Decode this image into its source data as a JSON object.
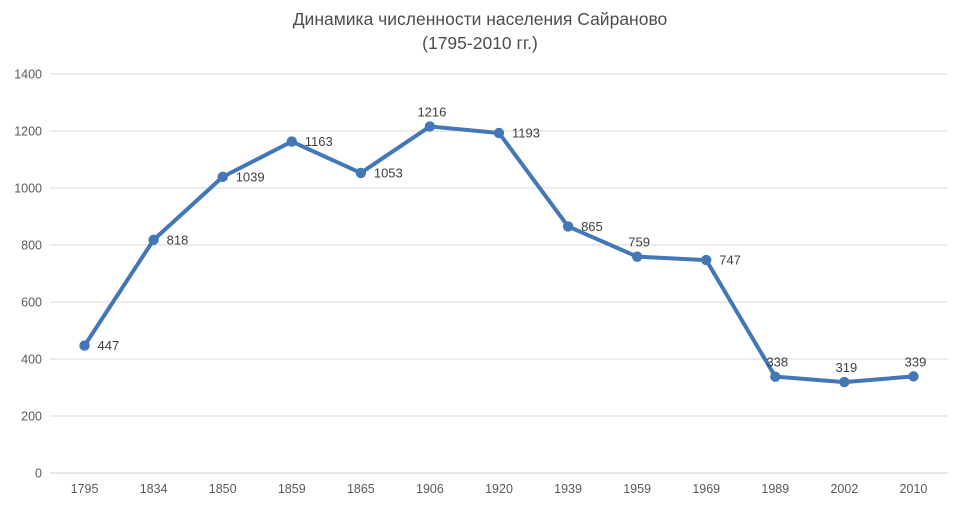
{
  "chart_data": {
    "type": "line",
    "title": "Динамика численности населения Сайраново (1795-2010 гг.)",
    "title_lines": [
      "Динамика численности населения Сайраново",
      "(1795-2010 гг.)"
    ],
    "categories": [
      "1795",
      "1834",
      "1850",
      "1859",
      "1865",
      "1906",
      "1920",
      "1939",
      "1959",
      "1969",
      "1989",
      "2002",
      "2010"
    ],
    "values": [
      447,
      818,
      1039,
      1163,
      1053,
      1216,
      1193,
      865,
      759,
      747,
      338,
      319,
      339
    ],
    "data_label_positions": [
      "right",
      "right",
      "right",
      "right",
      "right",
      "above",
      "right",
      "right",
      "above",
      "right",
      "above",
      "above",
      "above"
    ],
    "xlabel": "",
    "ylabel": "",
    "ylim": [
      0,
      1400
    ],
    "ytick_step": 200,
    "yticks": [
      0,
      200,
      400,
      600,
      800,
      1000,
      1200,
      1400
    ],
    "grid": true,
    "legend_position": "none",
    "colors": {
      "line": "#4377B6",
      "marker": "#4377B6",
      "gridline": "#D9D9D9",
      "axis_line": "#CFCFCF",
      "tick_label": "#595959",
      "data_label": "#3F3F3F",
      "title": "#4d4d4d",
      "background": "#FFFFFF"
    }
  }
}
